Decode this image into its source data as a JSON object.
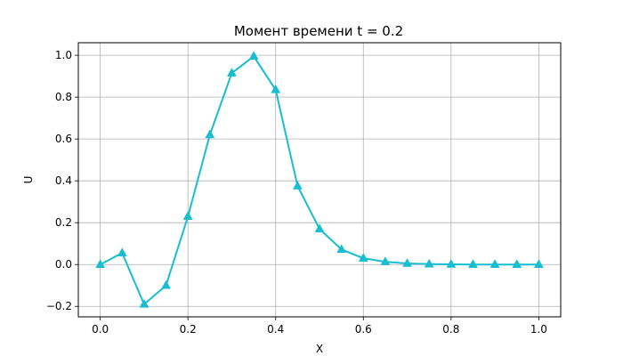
{
  "chart_data": {
    "type": "line",
    "title": "Момент времени t = 0.2",
    "xlabel": "X",
    "ylabel": "U",
    "xlim": [
      -0.05,
      1.05
    ],
    "ylim": [
      -0.25,
      1.06
    ],
    "x_ticks": [
      0.0,
      0.2,
      0.4,
      0.6,
      0.8,
      1.0
    ],
    "x_tick_labels": [
      "0.0",
      "0.2",
      "0.4",
      "0.6",
      "0.8",
      "1.0"
    ],
    "y_ticks": [
      -0.2,
      0.0,
      0.2,
      0.4,
      0.6,
      0.8,
      1.0
    ],
    "y_tick_labels": [
      "−0.2",
      "0.0",
      "0.2",
      "0.4",
      "0.6",
      "0.8",
      "1.0"
    ],
    "grid": true,
    "series": [
      {
        "color": "#17becf",
        "marker": "triangle-up",
        "x": [
          0.0,
          0.05,
          0.1,
          0.15,
          0.2,
          0.25,
          0.3,
          0.35,
          0.4,
          0.45,
          0.5,
          0.55,
          0.6,
          0.65,
          0.7,
          0.75,
          0.8,
          0.85,
          0.9,
          0.95,
          1.0
        ],
        "y": [
          0.0,
          0.055,
          -0.19,
          -0.1,
          0.23,
          0.62,
          0.915,
          0.995,
          0.835,
          0.375,
          0.17,
          0.072,
          0.03,
          0.013,
          0.005,
          0.002,
          0.001,
          0.0,
          0.0,
          0.0,
          0.0
        ]
      }
    ]
  }
}
